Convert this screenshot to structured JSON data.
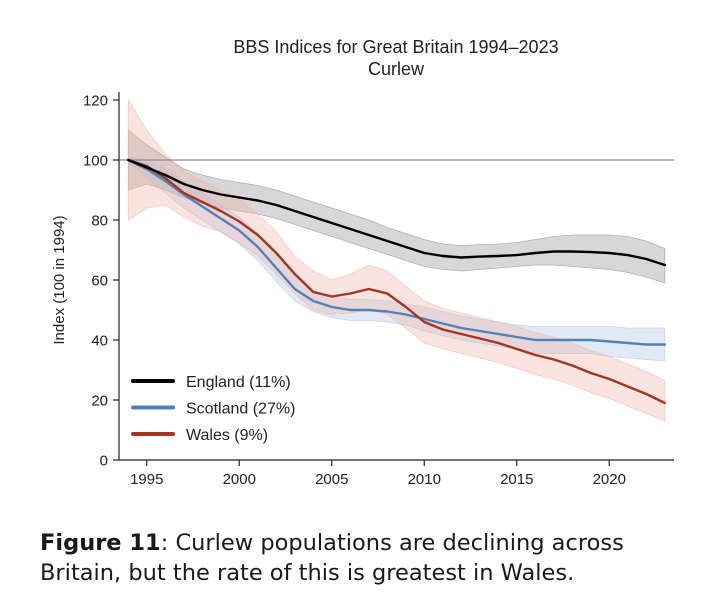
{
  "chart_data": {
    "type": "line",
    "title": "BBS Indices for Great Britain 1994–2023",
    "subtitle": "Curlew",
    "xlabel": "",
    "ylabel": "Index (100 in 1994)",
    "xlim": [
      1993.5,
      2023.5
    ],
    "ylim": [
      0,
      120
    ],
    "xticks": [
      1995,
      2000,
      2005,
      2010,
      2015,
      2020
    ],
    "yticks": [
      0,
      20,
      40,
      60,
      80,
      100,
      120
    ],
    "reference_line": 100,
    "legend_position": "lower-left",
    "series": [
      {
        "name": "England (11%)",
        "color": "#000000",
        "band_color": "#8c8c8c",
        "x": [
          1994,
          1995,
          1996,
          1997,
          1998,
          1999,
          2000,
          2001,
          2002,
          2003,
          2004,
          2005,
          2006,
          2007,
          2008,
          2009,
          2010,
          2011,
          2012,
          2013,
          2014,
          2015,
          2016,
          2017,
          2018,
          2019,
          2020,
          2021,
          2022,
          2023
        ],
        "values": [
          100,
          97.5,
          95,
          92,
          90,
          88.5,
          87.5,
          86.5,
          85,
          83,
          81,
          79,
          77,
          75,
          73,
          71,
          69,
          68,
          67.5,
          67.8,
          68,
          68.3,
          69,
          69.5,
          69.5,
          69.3,
          69,
          68.3,
          67,
          65
        ],
        "upper": [
          110,
          105,
          101,
          97,
          95,
          93.5,
          92.5,
          91.5,
          90,
          88,
          86,
          84,
          82,
          80,
          77.5,
          75.5,
          73.5,
          72,
          71.5,
          71.8,
          72,
          72.5,
          73.5,
          74.5,
          75,
          75,
          75,
          74.5,
          73,
          70.5
        ],
        "lower": [
          90,
          92,
          90,
          87.5,
          85.5,
          84,
          83,
          82,
          80.5,
          78.5,
          76.5,
          74.5,
          72.5,
          70.5,
          68.5,
          66.5,
          64.5,
          63.5,
          63,
          63.5,
          64,
          64.5,
          65,
          65,
          64.5,
          64,
          63.5,
          62.5,
          61,
          59
        ]
      },
      {
        "name": "Scotland (27%)",
        "color": "#4f83b8",
        "band_color": "#a9c4e0",
        "x": [
          1994,
          1995,
          1996,
          1997,
          1998,
          1999,
          2000,
          2001,
          2002,
          2003,
          2004,
          2005,
          2006,
          2007,
          2008,
          2009,
          2010,
          2011,
          2012,
          2013,
          2014,
          2015,
          2016,
          2017,
          2018,
          2019,
          2020,
          2021,
          2022,
          2023
        ],
        "values": [
          100,
          97,
          93,
          88.5,
          84.5,
          80.5,
          76.5,
          71,
          64,
          57,
          53,
          51,
          50,
          50,
          49.5,
          48.5,
          47,
          45.5,
          44,
          43,
          42,
          41,
          40,
          40,
          40,
          40,
          39.5,
          39,
          38.5,
          38.5
        ],
        "upper": [
          101,
          100,
          97,
          93,
          89,
          85,
          81,
          75.5,
          68.5,
          61,
          56.5,
          54.5,
          53.5,
          53.5,
          53,
          52,
          51,
          49.5,
          48,
          47,
          46,
          45,
          44.5,
          44.5,
          44.5,
          44.5,
          44.5,
          44,
          44,
          44
        ],
        "lower": [
          99,
          94,
          89,
          84,
          80,
          76,
          72,
          66.5,
          59.5,
          53,
          49.5,
          47.5,
          46.5,
          46.5,
          46,
          45,
          43,
          41.5,
          40,
          39,
          38,
          37,
          35.5,
          35.5,
          35.5,
          35.5,
          34.5,
          34,
          33.5,
          33
        ]
      },
      {
        "name": "Wales (9%)",
        "color": "#a8331f",
        "band_color": "#f0b2a5",
        "x": [
          1994,
          1995,
          1996,
          1997,
          1998,
          1999,
          2000,
          2001,
          2002,
          2003,
          2004,
          2005,
          2006,
          2007,
          2008,
          2009,
          2010,
          2011,
          2012,
          2013,
          2014,
          2015,
          2016,
          2017,
          2018,
          2019,
          2020,
          2021,
          2022,
          2023
        ],
        "values": [
          100,
          98,
          94,
          89,
          86,
          83,
          79.5,
          75,
          69,
          62,
          56,
          54.5,
          55.5,
          57,
          55.5,
          51,
          46,
          43.5,
          42,
          40.5,
          39,
          37,
          35,
          33.5,
          31.5,
          29,
          27,
          24.5,
          22,
          19
        ],
        "upper": [
          120,
          110,
          102,
          96,
          93,
          90,
          87,
          82,
          76,
          68,
          63,
          60,
          62,
          65,
          63,
          58,
          53,
          50.5,
          49,
          47.5,
          46,
          44.5,
          42.5,
          41,
          39,
          36.5,
          34.5,
          32,
          29.5,
          26.5
        ],
        "lower": [
          80,
          84,
          85,
          81,
          78,
          76,
          72.5,
          68,
          62,
          55.5,
          50,
          48.5,
          49,
          50,
          48.5,
          44,
          39,
          37,
          35.5,
          34,
          32.5,
          30.5,
          28.5,
          27,
          25,
          22.5,
          20.5,
          18,
          15.5,
          13
        ]
      }
    ]
  },
  "caption": {
    "figure_label": "Figure 11",
    "separator": ":",
    "text": " Curlew populations are declining across Britain, but the rate of this is greatest in Wales."
  }
}
